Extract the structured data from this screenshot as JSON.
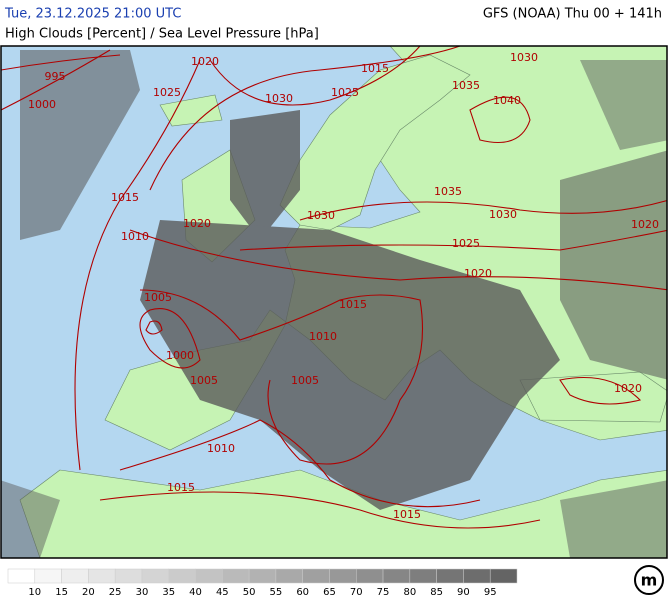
{
  "header": {
    "datetime": "Tue, 23.12.2025 21:00 UTC",
    "model_run": "GFS (NOAA) Thu 00 + 141h",
    "subtitle": "High Clouds [Percent] / Sea Level Pressure [hPa]"
  },
  "isobar_labels": [
    "995",
    "1000",
    "1020",
    "1015",
    "1030",
    "1025",
    "1025",
    "1035",
    "1030",
    "1040",
    "1035",
    "1015",
    "1030",
    "1030",
    "1020",
    "1010",
    "1025",
    "1020",
    "1020",
    "1005",
    "1015",
    "1010",
    "1000",
    "1005",
    "1005",
    "1020",
    "1010",
    "1015",
    "1015"
  ],
  "legend": {
    "labels": [
      "10",
      "15",
      "20",
      "25",
      "30",
      "35",
      "40",
      "45",
      "50",
      "55",
      "60",
      "65",
      "70",
      "75",
      "80",
      "85",
      "90",
      "95"
    ]
  },
  "logo": "m"
}
